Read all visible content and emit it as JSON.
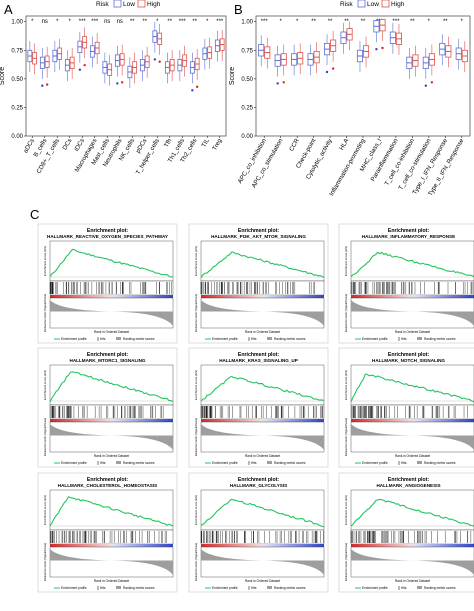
{
  "panels": {
    "A": {
      "label": "A"
    },
    "B": {
      "label": "B"
    },
    "C": {
      "label": "C"
    }
  },
  "colors": {
    "low": "#5b6fd6",
    "high": "#e0504a",
    "green": "#22c55e",
    "outlier_red": "#d62728",
    "outlier_blue": "#2f44c8"
  },
  "chart_data": [
    {
      "type": "box",
      "panel": "A",
      "legend_title": "Risk",
      "legend_entries": [
        "Low",
        "High"
      ],
      "ylabel": "Score",
      "ylim": [
        0,
        1.05
      ],
      "yticks": [
        "0.00",
        "0.25",
        "0.50",
        "0.75",
        "1.00"
      ],
      "categories": [
        "aDCs",
        "B_cells",
        "CD8+_T_cells",
        "DCs",
        "iDCs",
        "Macrophages",
        "Mast_cells",
        "Neutrophils",
        "NK_cells",
        "pDCs",
        "T_helper_cells",
        "Tfh",
        "Th1_cells",
        "Th2_cells",
        "TIL",
        "Treg"
      ],
      "significance": [
        "*",
        "ns",
        "*",
        "*",
        "***",
        "***",
        "ns",
        "ns",
        "**",
        "**",
        "*",
        "**",
        "***",
        "**",
        "*",
        "***"
      ],
      "series": [
        {
          "name": "Low",
          "median": [
            0.7,
            0.64,
            0.7,
            0.62,
            0.78,
            0.74,
            0.6,
            0.66,
            0.56,
            0.62,
            0.87,
            0.6,
            0.62,
            0.6,
            0.72,
            0.79
          ]
        },
        {
          "name": "High",
          "median": [
            0.68,
            0.65,
            0.72,
            0.64,
            0.82,
            0.77,
            0.58,
            0.67,
            0.6,
            0.65,
            0.85,
            0.62,
            0.66,
            0.63,
            0.73,
            0.8
          ]
        }
      ]
    },
    {
      "type": "box",
      "panel": "B",
      "legend_title": "Risk",
      "legend_entries": [
        "Low",
        "High"
      ],
      "ylabel": "Score",
      "ylim": [
        0,
        1.05
      ],
      "yticks": [
        "0.00",
        "0.25",
        "0.50",
        "0.75",
        "1.00"
      ],
      "categories": [
        "APC_co_inhibition",
        "APC_co_stimulation",
        "CCR",
        "Check-point",
        "Cytolytic_activity",
        "HLA",
        "Inflammation-promoting",
        "MHC_class_I",
        "Parainflammation",
        "T_cell_co-inhibition",
        "T_cell_co-stimulation",
        "Type_I_IFN_Response",
        "Type_II_IFN_Response"
      ],
      "significance": [
        "***",
        "*",
        "*",
        "**",
        "**",
        "**",
        "**",
        "***",
        "***",
        "**",
        "*",
        "**",
        "*"
      ],
      "series": [
        {
          "name": "Low",
          "median": [
            0.75,
            0.66,
            0.67,
            0.67,
            0.76,
            0.86,
            0.7,
            0.96,
            0.86,
            0.64,
            0.64,
            0.76,
            0.72
          ]
        },
        {
          "name": "High",
          "median": [
            0.73,
            0.67,
            0.68,
            0.69,
            0.79,
            0.89,
            0.74,
            0.97,
            0.85,
            0.66,
            0.67,
            0.74,
            0.7
          ]
        }
      ]
    },
    {
      "type": "gsea",
      "panel": "C",
      "plots": [
        {
          "title_line1": "Enrichment plot:",
          "title_line2": "HALLMARK_REACTIVE_OXYGEN_SPECIES_PATHWAY",
          "es_peak": 0.55,
          "peak_pos": 0.18
        },
        {
          "title_line1": "Enrichment plot:",
          "title_line2": "HALLMARK_PI3K_AKT_MTOR_SIGNALING",
          "es_peak": 0.5,
          "peak_pos": 0.25
        },
        {
          "title_line1": "Enrichment plot:",
          "title_line2": "HALLMARK_INFLAMMATORY_RESPONSE",
          "es_peak": 0.5,
          "peak_pos": 0.22
        },
        {
          "title_line1": "Enrichment plot:",
          "title_line2": "HALLMARK_MTORC1_SIGNALING",
          "es_peak": 0.6,
          "peak_pos": 0.17
        },
        {
          "title_line1": "Enrichment plot:",
          "title_line2": "HALLMARK_KRAS_SIGNALING_UP",
          "es_peak": 0.5,
          "peak_pos": 0.25
        },
        {
          "title_line1": "Enrichment plot:",
          "title_line2": "HALLMARK_NOTCH_SIGNALING",
          "es_peak": 0.55,
          "peak_pos": 0.12
        },
        {
          "title_line1": "Enrichment plot:",
          "title_line2": "HALLMARK_CHOLESTEROL_HOMEOSTASIS",
          "es_peak": 0.6,
          "peak_pos": 0.15
        },
        {
          "title_line1": "Enrichment plot:",
          "title_line2": "HALLMARK_GLYCOLYSIS",
          "es_peak": 0.55,
          "peak_pos": 0.25
        },
        {
          "title_line1": "Enrichment plot:",
          "title_line2": "HALLMARK_ANGIOGENESIS",
          "es_peak": 0.55,
          "peak_pos": 0.22
        }
      ],
      "legend_entries": [
        "Enrichment profile",
        "Hits",
        "Ranking metric scores"
      ],
      "ylabel_es": "Enrichment score (ES)",
      "ylabel_rank": "Ranked list metric (Signal2Noise)",
      "xlabel": "Rank in Ordered Dataset"
    }
  ]
}
